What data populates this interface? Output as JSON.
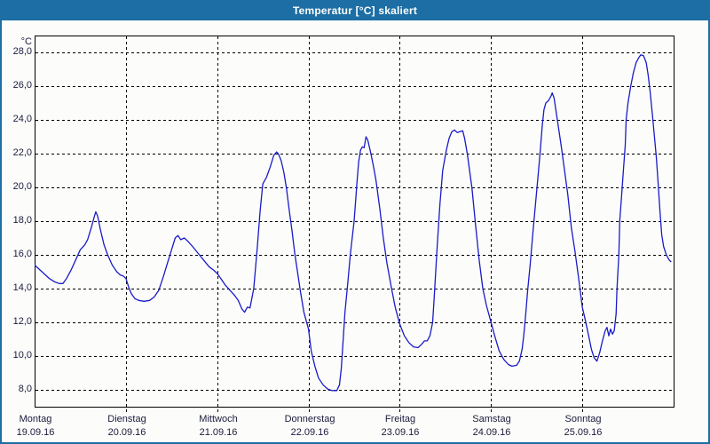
{
  "window": {
    "title": "Temperatur [°C] skaliert"
  },
  "colors": {
    "titlebar": "#1C6EA4",
    "window_border": "#1C6EA4",
    "background": "#FCFDFA",
    "plot_border": "#000000",
    "gridline": "#000000",
    "label_text": "#1A1A3C",
    "series_line": "#1A1AC8"
  },
  "chart_data": {
    "type": "line",
    "title": "Temperatur [°C] skaliert",
    "ylabel": "°C",
    "ylim": [
      7,
      29
    ],
    "xlim_days": [
      0,
      7
    ],
    "grid": "dashed",
    "legend": "none",
    "y_ticks": [
      {
        "value": 28,
        "label": "28,0"
      },
      {
        "value": 26,
        "label": "26,0"
      },
      {
        "value": 24,
        "label": "24,0"
      },
      {
        "value": 22,
        "label": "22,0"
      },
      {
        "value": 20,
        "label": "20,0"
      },
      {
        "value": 18,
        "label": "18,0"
      },
      {
        "value": 16,
        "label": "16,0"
      },
      {
        "value": 14,
        "label": "14,0"
      },
      {
        "value": 12,
        "label": "12,0"
      },
      {
        "value": 10,
        "label": "10,0"
      },
      {
        "value": 8,
        "label": "8,0"
      }
    ],
    "days": [
      {
        "name": "Montag",
        "date": "19.09.16"
      },
      {
        "name": "Dienstag",
        "date": "20.09.16"
      },
      {
        "name": "Mittwoch",
        "date": "21.09.16"
      },
      {
        "name": "Donnerstag",
        "date": "22.09.16"
      },
      {
        "name": "Freitag",
        "date": "23.09.16"
      },
      {
        "name": "Samstag",
        "date": "24.09.16"
      },
      {
        "name": "Sonntag",
        "date": "25.09.16"
      }
    ],
    "x_unit": "days since Montag 19.09.16 00:00",
    "series": [
      {
        "name": "Temperatur",
        "color": "#1A1AC8",
        "points": [
          [
            0.0,
            15.4
          ],
          [
            0.05,
            15.15
          ],
          [
            0.1,
            14.9
          ],
          [
            0.16,
            14.6
          ],
          [
            0.22,
            14.4
          ],
          [
            0.27,
            14.3
          ],
          [
            0.31,
            14.3
          ],
          [
            0.35,
            14.6
          ],
          [
            0.4,
            15.1
          ],
          [
            0.45,
            15.7
          ],
          [
            0.5,
            16.3
          ],
          [
            0.55,
            16.6
          ],
          [
            0.58,
            16.9
          ],
          [
            0.62,
            17.6
          ],
          [
            0.65,
            18.2
          ],
          [
            0.67,
            18.55
          ],
          [
            0.69,
            18.3
          ],
          [
            0.72,
            17.5
          ],
          [
            0.76,
            16.6
          ],
          [
            0.8,
            16.0
          ],
          [
            0.85,
            15.4
          ],
          [
            0.9,
            15.0
          ],
          [
            0.94,
            14.8
          ],
          [
            0.97,
            14.75
          ],
          [
            1.0,
            14.6
          ],
          [
            1.03,
            14.1
          ],
          [
            1.06,
            13.7
          ],
          [
            1.1,
            13.4
          ],
          [
            1.14,
            13.3
          ],
          [
            1.2,
            13.25
          ],
          [
            1.26,
            13.3
          ],
          [
            1.31,
            13.5
          ],
          [
            1.36,
            13.9
          ],
          [
            1.41,
            14.7
          ],
          [
            1.46,
            15.6
          ],
          [
            1.5,
            16.3
          ],
          [
            1.54,
            17.0
          ],
          [
            1.57,
            17.15
          ],
          [
            1.6,
            16.9
          ],
          [
            1.64,
            17.0
          ],
          [
            1.68,
            16.8
          ],
          [
            1.73,
            16.5
          ],
          [
            1.79,
            16.1
          ],
          [
            1.85,
            15.7
          ],
          [
            1.91,
            15.3
          ],
          [
            1.96,
            15.1
          ],
          [
            2.0,
            14.9
          ],
          [
            2.04,
            14.6
          ],
          [
            2.09,
            14.2
          ],
          [
            2.14,
            13.9
          ],
          [
            2.19,
            13.6
          ],
          [
            2.23,
            13.3
          ],
          [
            2.27,
            12.8
          ],
          [
            2.3,
            12.6
          ],
          [
            2.33,
            12.9
          ],
          [
            2.36,
            12.85
          ],
          [
            2.4,
            14.0
          ],
          [
            2.44,
            16.5
          ],
          [
            2.47,
            18.6
          ],
          [
            2.5,
            20.2
          ],
          [
            2.54,
            20.6
          ],
          [
            2.58,
            21.2
          ],
          [
            2.62,
            21.9
          ],
          [
            2.65,
            22.1
          ],
          [
            2.67,
            22.0
          ],
          [
            2.7,
            21.6
          ],
          [
            2.73,
            20.9
          ],
          [
            2.76,
            19.9
          ],
          [
            2.79,
            18.6
          ],
          [
            2.82,
            17.4
          ],
          [
            2.85,
            16.1
          ],
          [
            2.88,
            15.0
          ],
          [
            2.91,
            13.9
          ],
          [
            2.95,
            12.6
          ],
          [
            3.0,
            11.6
          ],
          [
            3.03,
            10.3
          ],
          [
            3.07,
            9.4
          ],
          [
            3.11,
            8.7
          ],
          [
            3.16,
            8.3
          ],
          [
            3.21,
            8.05
          ],
          [
            3.26,
            7.95
          ],
          [
            3.31,
            7.95
          ],
          [
            3.34,
            8.3
          ],
          [
            3.36,
            9.3
          ],
          [
            3.38,
            11.0
          ],
          [
            3.4,
            12.6
          ],
          [
            3.43,
            14.3
          ],
          [
            3.46,
            16.1
          ],
          [
            3.5,
            18.0
          ],
          [
            3.53,
            20.2
          ],
          [
            3.55,
            21.5
          ],
          [
            3.57,
            22.2
          ],
          [
            3.59,
            22.4
          ],
          [
            3.61,
            22.35
          ],
          [
            3.63,
            23.0
          ],
          [
            3.65,
            22.8
          ],
          [
            3.68,
            22.1
          ],
          [
            3.71,
            21.3
          ],
          [
            3.74,
            20.4
          ],
          [
            3.78,
            18.8
          ],
          [
            3.82,
            17.0
          ],
          [
            3.86,
            15.5
          ],
          [
            3.91,
            14.0
          ],
          [
            3.95,
            12.9
          ],
          [
            4.0,
            11.9
          ],
          [
            4.05,
            11.2
          ],
          [
            4.1,
            10.8
          ],
          [
            4.15,
            10.55
          ],
          [
            4.2,
            10.5
          ],
          [
            4.24,
            10.7
          ],
          [
            4.27,
            10.9
          ],
          [
            4.3,
            10.9
          ],
          [
            4.33,
            11.2
          ],
          [
            4.36,
            12.0
          ],
          [
            4.38,
            13.7
          ],
          [
            4.41,
            16.5
          ],
          [
            4.44,
            19.0
          ],
          [
            4.47,
            21.0
          ],
          [
            4.51,
            22.2
          ],
          [
            4.54,
            22.9
          ],
          [
            4.57,
            23.3
          ],
          [
            4.6,
            23.4
          ],
          [
            4.63,
            23.25
          ],
          [
            4.66,
            23.3
          ],
          [
            4.69,
            23.35
          ],
          [
            4.71,
            22.9
          ],
          [
            4.74,
            22.0
          ],
          [
            4.79,
            20.0
          ],
          [
            4.83,
            17.8
          ],
          [
            4.87,
            15.7
          ],
          [
            4.91,
            14.0
          ],
          [
            4.95,
            13.0
          ],
          [
            5.0,
            12.0
          ],
          [
            5.04,
            11.2
          ],
          [
            5.09,
            10.3
          ],
          [
            5.14,
            9.8
          ],
          [
            5.19,
            9.5
          ],
          [
            5.23,
            9.4
          ],
          [
            5.28,
            9.45
          ],
          [
            5.31,
            9.7
          ],
          [
            5.34,
            10.4
          ],
          [
            5.36,
            11.3
          ],
          [
            5.38,
            12.5
          ],
          [
            5.4,
            13.8
          ],
          [
            5.43,
            15.5
          ],
          [
            5.46,
            17.4
          ],
          [
            5.49,
            19.2
          ],
          [
            5.52,
            21.0
          ],
          [
            5.54,
            22.2
          ],
          [
            5.56,
            23.6
          ],
          [
            5.58,
            24.6
          ],
          [
            5.6,
            25.0
          ],
          [
            5.63,
            25.15
          ],
          [
            5.66,
            25.45
          ],
          [
            5.67,
            25.6
          ],
          [
            5.69,
            25.3
          ],
          [
            5.71,
            24.6
          ],
          [
            5.74,
            23.5
          ],
          [
            5.77,
            22.4
          ],
          [
            5.8,
            21.2
          ],
          [
            5.84,
            19.6
          ],
          [
            5.88,
            17.6
          ],
          [
            5.92,
            16.2
          ],
          [
            5.96,
            14.6
          ],
          [
            6.0,
            12.9
          ],
          [
            6.03,
            12.2
          ],
          [
            6.07,
            11.2
          ],
          [
            6.1,
            10.4
          ],
          [
            6.13,
            9.9
          ],
          [
            6.16,
            9.7
          ],
          [
            6.19,
            10.2
          ],
          [
            6.22,
            10.9
          ],
          [
            6.25,
            11.5
          ],
          [
            6.27,
            11.7
          ],
          [
            6.29,
            11.2
          ],
          [
            6.31,
            11.6
          ],
          [
            6.33,
            11.3
          ],
          [
            6.35,
            11.5
          ],
          [
            6.37,
            12.5
          ],
          [
            6.38,
            14.0
          ],
          [
            6.4,
            16.0
          ],
          [
            6.41,
            18.0
          ],
          [
            6.43,
            19.5
          ],
          [
            6.45,
            21.0
          ],
          [
            6.47,
            22.5
          ],
          [
            6.48,
            24.0
          ],
          [
            6.5,
            25.0
          ],
          [
            6.53,
            26.0
          ],
          [
            6.56,
            26.8
          ],
          [
            6.59,
            27.4
          ],
          [
            6.62,
            27.7
          ],
          [
            6.64,
            27.85
          ],
          [
            6.67,
            27.8
          ],
          [
            6.7,
            27.4
          ],
          [
            6.72,
            26.7
          ],
          [
            6.74,
            25.8
          ],
          [
            6.77,
            24.2
          ],
          [
            6.79,
            23.0
          ],
          [
            6.81,
            21.8
          ],
          [
            6.83,
            20.3
          ],
          [
            6.85,
            18.6
          ],
          [
            6.87,
            17.2
          ],
          [
            6.89,
            16.5
          ],
          [
            6.92,
            16.0
          ],
          [
            6.95,
            15.7
          ],
          [
            6.97,
            15.6
          ]
        ]
      }
    ]
  }
}
